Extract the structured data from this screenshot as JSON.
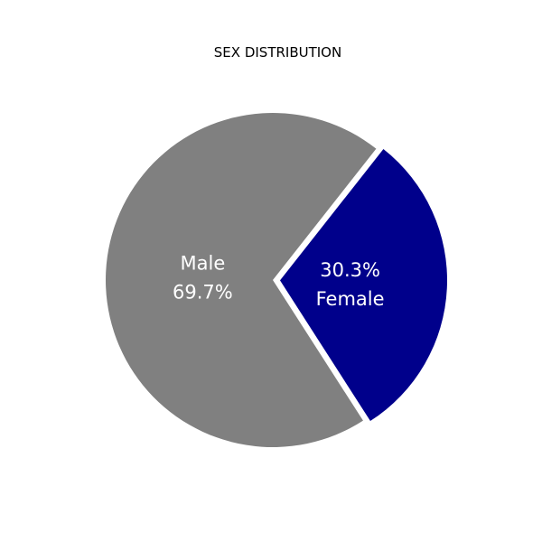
{
  "chart_data": {
    "type": "pie",
    "title": "SEX DISTRIBUTION",
    "slices": [
      {
        "label": "Female",
        "value": 30.3,
        "pct_label": "30.3%",
        "color": "#00008b",
        "exploded": true
      },
      {
        "label": "Male",
        "value": 69.7,
        "pct_label": "69.7%",
        "color": "#808080",
        "exploded": false
      }
    ]
  }
}
